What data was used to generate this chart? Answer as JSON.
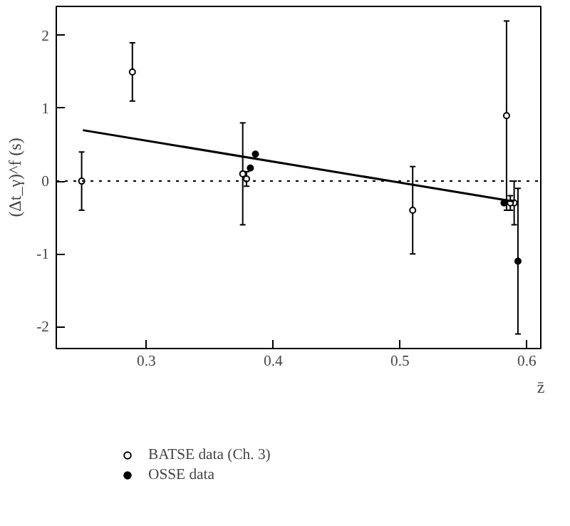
{
  "chart_data": {
    "type": "scatter",
    "xlabel": "z̄",
    "ylabel": "(Δt_γ)^f (s)",
    "xlim": [
      0.229,
      0.611
    ],
    "ylim": [
      -2.3,
      2.4
    ],
    "xticks": [
      0.3,
      0.4,
      0.5,
      0.6
    ],
    "yticks": [
      -2,
      -1,
      0,
      1,
      2
    ],
    "grid": false,
    "legend": "bottom",
    "marker": "circle",
    "series": [
      {
        "name": "BATSE data (Ch. 3)",
        "color": "#000000",
        "x": [
          0.249,
          0.289,
          0.376,
          0.379,
          0.51,
          0.584,
          0.59,
          0.587
        ],
        "values": [
          0,
          1.5,
          0.1,
          0.03,
          -0.4,
          0.9,
          -0.3,
          -0.3
        ],
        "errors": [
          0.4,
          0.4,
          0.7,
          0.1,
          0.6,
          1.3,
          0.3,
          0.1
        ]
      },
      {
        "name": "OSSE data",
        "color": "#000000",
        "x": [
          0.382,
          0.386,
          0.593,
          0.582
        ],
        "values": [
          0.18,
          0.37,
          -1.1,
          -0.3
        ],
        "errors": [
          null,
          null,
          1.0,
          null
        ]
      },
      {
        "type": "line",
        "marker": "none",
        "color": "#000000",
        "x": [
          0.25,
          0.59
        ],
        "values": [
          0.7,
          -0.28
        ]
      }
    ],
    "ref_lines": [
      {
        "axis": "y",
        "value": 0,
        "line_style": "dotted",
        "color": "#000000"
      }
    ]
  }
}
